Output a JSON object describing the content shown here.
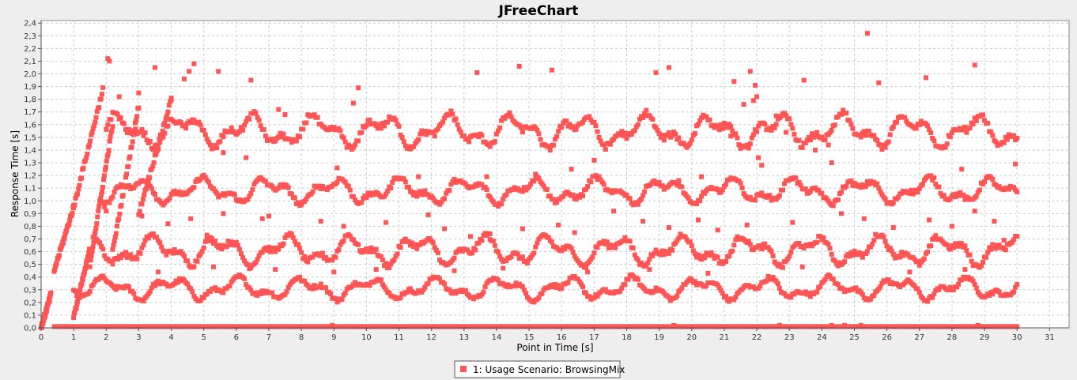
{
  "chart_data": {
    "type": "scatter",
    "title": "JFreeChart",
    "xlabel": "Point in Time [s]",
    "ylabel": "Response Time [s]",
    "xlim": [
      0,
      31.6
    ],
    "ylim": [
      0,
      2.42
    ],
    "xticks": [
      "0",
      "1",
      "2",
      "3",
      "4",
      "5",
      "6",
      "7",
      "8",
      "9",
      "10",
      "11",
      "12",
      "13",
      "14",
      "15",
      "16",
      "17",
      "18",
      "19",
      "20",
      "21",
      "22",
      "23",
      "24",
      "25",
      "26",
      "27",
      "28",
      "29",
      "30",
      "31"
    ],
    "yticks": [
      "0,0",
      "0,1",
      "0,2",
      "0,3",
      "0,4",
      "0,5",
      "0,6",
      "0,7",
      "0,8",
      "0,9",
      "1,0",
      "1,1",
      "1,2",
      "1,3",
      "1,4",
      "1,5",
      "1,6",
      "1,7",
      "1,8",
      "1,9",
      "2,0",
      "2,1",
      "2,2",
      "2,3",
      "2,4"
    ],
    "grid": true,
    "legend_position": "bottom-center",
    "colors": {
      "series": "#ff5555",
      "background": "#ffffff",
      "grid": "#cccccc"
    },
    "series": [
      {
        "name": "1: Usage Scenario: BrowsingMix",
        "marker": "square",
        "bands": [
          {
            "x_range": [
              0.4,
              30.0
            ],
            "y_center": 0.01,
            "amplitude": 0.0,
            "step": 0.05
          },
          {
            "x_range": [
              1.0,
              30.0
            ],
            "y_center": 0.31,
            "amplitude": 0.06,
            "step": 0.05
          },
          {
            "x_range": [
              1.6,
              30.0
            ],
            "y_center": 0.61,
            "amplitude": 0.08,
            "step": 0.05
          },
          {
            "x_range": [
              1.8,
              30.0
            ],
            "y_center": 1.08,
            "amplitude": 0.07,
            "step": 0.05
          },
          {
            "x_range": [
              2.0,
              30.0
            ],
            "y_center": 1.55,
            "amplitude": 0.09,
            "step": 0.05
          }
        ],
        "ramps": [
          {
            "x": [
              0.0,
              0.3
            ],
            "y": [
              0.0,
              0.26
            ]
          },
          {
            "x": [
              0.4,
              1.0
            ],
            "y": [
              0.45,
              0.95
            ]
          },
          {
            "x": [
              1.0,
              1.9
            ],
            "y": [
              0.95,
              1.88
            ]
          },
          {
            "x": [
              1.0,
              1.5
            ],
            "y": [
              0.08,
              0.62
            ]
          },
          {
            "x": [
              1.5,
              2.2
            ],
            "y": [
              0.5,
              1.6
            ]
          },
          {
            "x": [
              2.2,
              3.0
            ],
            "y": [
              0.6,
              1.75
            ]
          },
          {
            "x": [
              3.0,
              4.0
            ],
            "y": [
              0.9,
              1.8
            ]
          }
        ],
        "outliers": [
          [
            2.05,
            2.12
          ],
          [
            2.1,
            2.1
          ],
          [
            3.5,
            2.05
          ],
          [
            4.4,
            1.96
          ],
          [
            4.55,
            2.02
          ],
          [
            4.7,
            2.08
          ],
          [
            5.45,
            2.02
          ],
          [
            6.45,
            1.95
          ],
          [
            9.75,
            1.89
          ],
          [
            9.6,
            1.77
          ],
          [
            13.4,
            2.01
          ],
          [
            14.7,
            2.06
          ],
          [
            15.7,
            2.03
          ],
          [
            18.9,
            2.01
          ],
          [
            19.3,
            2.05
          ],
          [
            21.3,
            1.94
          ],
          [
            21.8,
            2.02
          ],
          [
            21.95,
            1.91
          ],
          [
            22.0,
            1.82
          ],
          [
            23.45,
            1.95
          ],
          [
            25.4,
            2.32
          ],
          [
            25.75,
            1.93
          ],
          [
            27.2,
            1.97
          ],
          [
            28.7,
            2.07
          ],
          [
            2.4,
            1.82
          ],
          [
            3.0,
            1.85
          ],
          [
            4.0,
            1.81
          ],
          [
            7.3,
            1.72
          ],
          [
            7.5,
            1.68
          ],
          [
            21.6,
            1.76
          ],
          [
            21.9,
            1.79
          ],
          [
            22.6,
            1.67
          ],
          [
            21.2,
            1.51
          ],
          [
            22.9,
            1.54
          ],
          [
            23.8,
            1.4
          ],
          [
            24.2,
            1.44
          ],
          [
            5.6,
            1.38
          ],
          [
            6.3,
            1.34
          ],
          [
            9.1,
            1.26
          ],
          [
            11.6,
            1.19
          ],
          [
            13.7,
            1.19
          ],
          [
            15.2,
            1.21
          ],
          [
            16.3,
            1.25
          ],
          [
            17.0,
            1.32
          ],
          [
            19.6,
            1.16
          ],
          [
            20.3,
            1.19
          ],
          [
            22.05,
            1.34
          ],
          [
            22.15,
            1.28
          ],
          [
            24.3,
            1.3
          ],
          [
            28.3,
            1.25
          ],
          [
            29.95,
            1.29
          ],
          [
            2.0,
            0.92
          ],
          [
            3.1,
            0.88
          ],
          [
            3.9,
            0.82
          ],
          [
            4.6,
            0.86
          ],
          [
            5.1,
            0.73
          ],
          [
            5.6,
            0.9
          ],
          [
            6.8,
            0.86
          ],
          [
            7.0,
            0.88
          ],
          [
            8.6,
            0.84
          ],
          [
            9.3,
            0.8
          ],
          [
            10.6,
            0.83
          ],
          [
            11.9,
            0.89
          ],
          [
            12.4,
            0.78
          ],
          [
            13.2,
            0.72
          ],
          [
            13.8,
            0.74
          ],
          [
            14.8,
            0.78
          ],
          [
            15.9,
            0.81
          ],
          [
            16.4,
            0.75
          ],
          [
            17.6,
            0.92
          ],
          [
            18.5,
            0.84
          ],
          [
            19.3,
            0.79
          ],
          [
            20.2,
            0.85
          ],
          [
            20.8,
            0.77
          ],
          [
            21.7,
            0.81
          ],
          [
            23.1,
            0.83
          ],
          [
            24.6,
            0.9
          ],
          [
            25.3,
            0.86
          ],
          [
            26.2,
            0.79
          ],
          [
            27.3,
            0.85
          ],
          [
            28.0,
            0.8
          ],
          [
            28.7,
            0.92
          ],
          [
            29.3,
            0.84
          ],
          [
            29.6,
            0.69
          ],
          [
            3.6,
            0.44
          ],
          [
            5.3,
            0.48
          ],
          [
            7.2,
            0.46
          ],
          [
            9.0,
            0.44
          ],
          [
            10.3,
            0.46
          ],
          [
            12.7,
            0.45
          ],
          [
            14.2,
            0.47
          ],
          [
            16.8,
            0.44
          ],
          [
            18.7,
            0.46
          ],
          [
            20.5,
            0.43
          ],
          [
            23.4,
            0.48
          ],
          [
            26.7,
            0.44
          ],
          [
            28.4,
            0.46
          ],
          [
            8.95,
            0.02
          ],
          [
            19.45,
            0.02
          ],
          [
            22.7,
            0.02
          ],
          [
            24.3,
            0.02
          ],
          [
            24.7,
            0.02
          ],
          [
            25.2,
            0.02
          ],
          [
            28.8,
            0.02
          ]
        ]
      }
    ]
  }
}
